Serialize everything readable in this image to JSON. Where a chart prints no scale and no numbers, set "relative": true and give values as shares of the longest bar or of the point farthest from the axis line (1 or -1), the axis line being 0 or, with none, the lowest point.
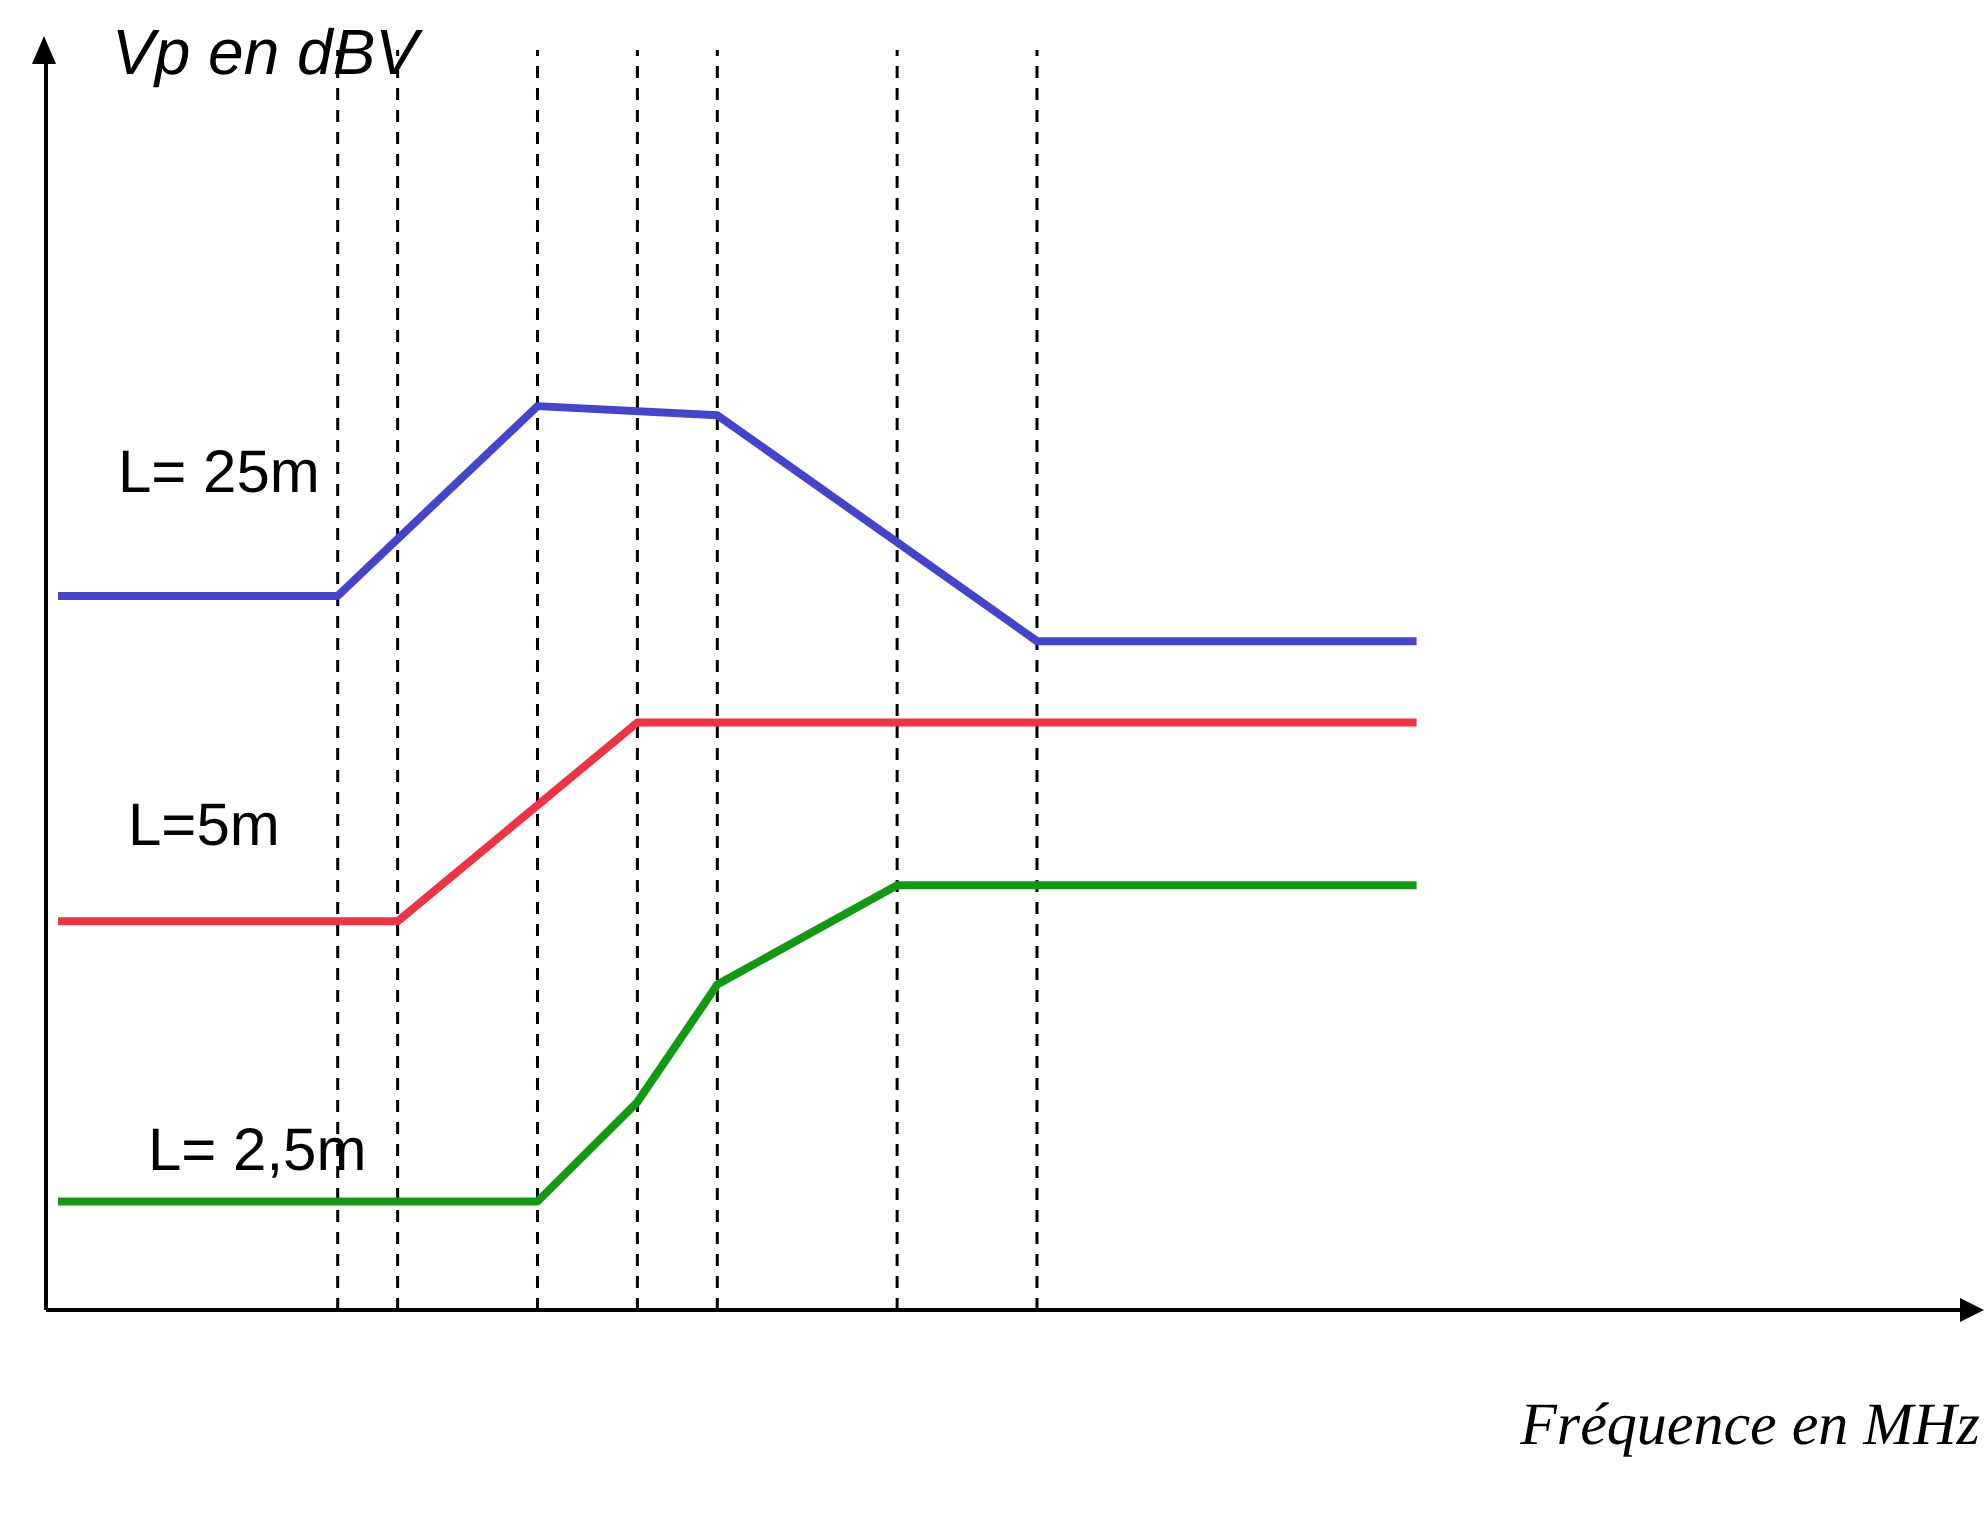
{
  "chart_data": {
    "type": "line",
    "relative": true,
    "grid": "x",
    "marker": "none",
    "ylabel": "Vp en dBV",
    "xlabel": "Fréquence en MHz",
    "categories": [
      null,
      null,
      null,
      null,
      null,
      null,
      null,
      null,
      null,
      null,
      null,
      null,
      null,
      null,
      null,
      null,
      null,
      null,
      null,
      null,
      null,
      null,
      null,
      null,
      null,
      null,
      null,
      null,
      null,
      null,
      null,
      null,
      null,
      null,
      null,
      null,
      null,
      null,
      null,
      null,
      null,
      null,
      null,
      null,
      null,
      null,
      null,
      null,
      null,
      null,
      null,
      null,
      null,
      null,
      null,
      null,
      null,
      null,
      null,
      null,
      null,
      null,
      null,
      null,
      null,
      null,
      null,
      null,
      null
    ],
    "series": [
      {
        "name": "L= 25m",
        "color": "#4444cc",
        "values": [
          0.79,
          null,
          null,
          null,
          null,
          null,
          null,
          null,
          null,
          null,
          null,
          null,
          null,
          null,
          0.79,
          null,
          null,
          null,
          null,
          null,
          null,
          null,
          null,
          null,
          1,
          null,
          null,
          null,
          null,
          null,
          null,
          null,
          null,
          0.99,
          null,
          null,
          null,
          null,
          null,
          null,
          null,
          null,
          null,
          null,
          null,
          null,
          null,
          null,
          null,
          0.74,
          null,
          null,
          null,
          null,
          null,
          null,
          null,
          null,
          null,
          null,
          null,
          null,
          null,
          null,
          null,
          null,
          null,
          null,
          0.74
        ]
      },
      {
        "name": "L=5m",
        "color": "#ee3344",
        "values": [
          0.43,
          null,
          null,
          null,
          null,
          null,
          null,
          null,
          null,
          null,
          null,
          null,
          null,
          null,
          null,
          null,
          null,
          0.43,
          null,
          null,
          null,
          null,
          null,
          null,
          null,
          null,
          null,
          null,
          null,
          0.65,
          null,
          null,
          null,
          null,
          null,
          null,
          null,
          null,
          null,
          null,
          null,
          null,
          null,
          null,
          null,
          null,
          null,
          null,
          null,
          null,
          null,
          null,
          null,
          null,
          null,
          null,
          null,
          null,
          null,
          null,
          null,
          null,
          null,
          null,
          null,
          null,
          null,
          null,
          0.65
        ]
      },
      {
        "name": "L= 2,5m",
        "color": "#119911",
        "values": [
          0.12,
          null,
          null,
          null,
          null,
          null,
          null,
          null,
          null,
          null,
          null,
          null,
          null,
          null,
          null,
          null,
          null,
          null,
          null,
          null,
          null,
          null,
          null,
          null,
          0.12,
          null,
          null,
          null,
          null,
          0.23,
          null,
          null,
          null,
          0.36,
          null,
          null,
          null,
          null,
          null,
          null,
          null,
          null,
          0.47,
          null,
          null,
          null,
          null,
          null,
          null,
          null,
          null,
          null,
          null,
          null,
          null,
          null,
          null,
          null,
          null,
          null,
          null,
          null,
          null,
          null,
          null,
          null,
          null,
          null,
          0.47
        ]
      }
    ]
  }
}
